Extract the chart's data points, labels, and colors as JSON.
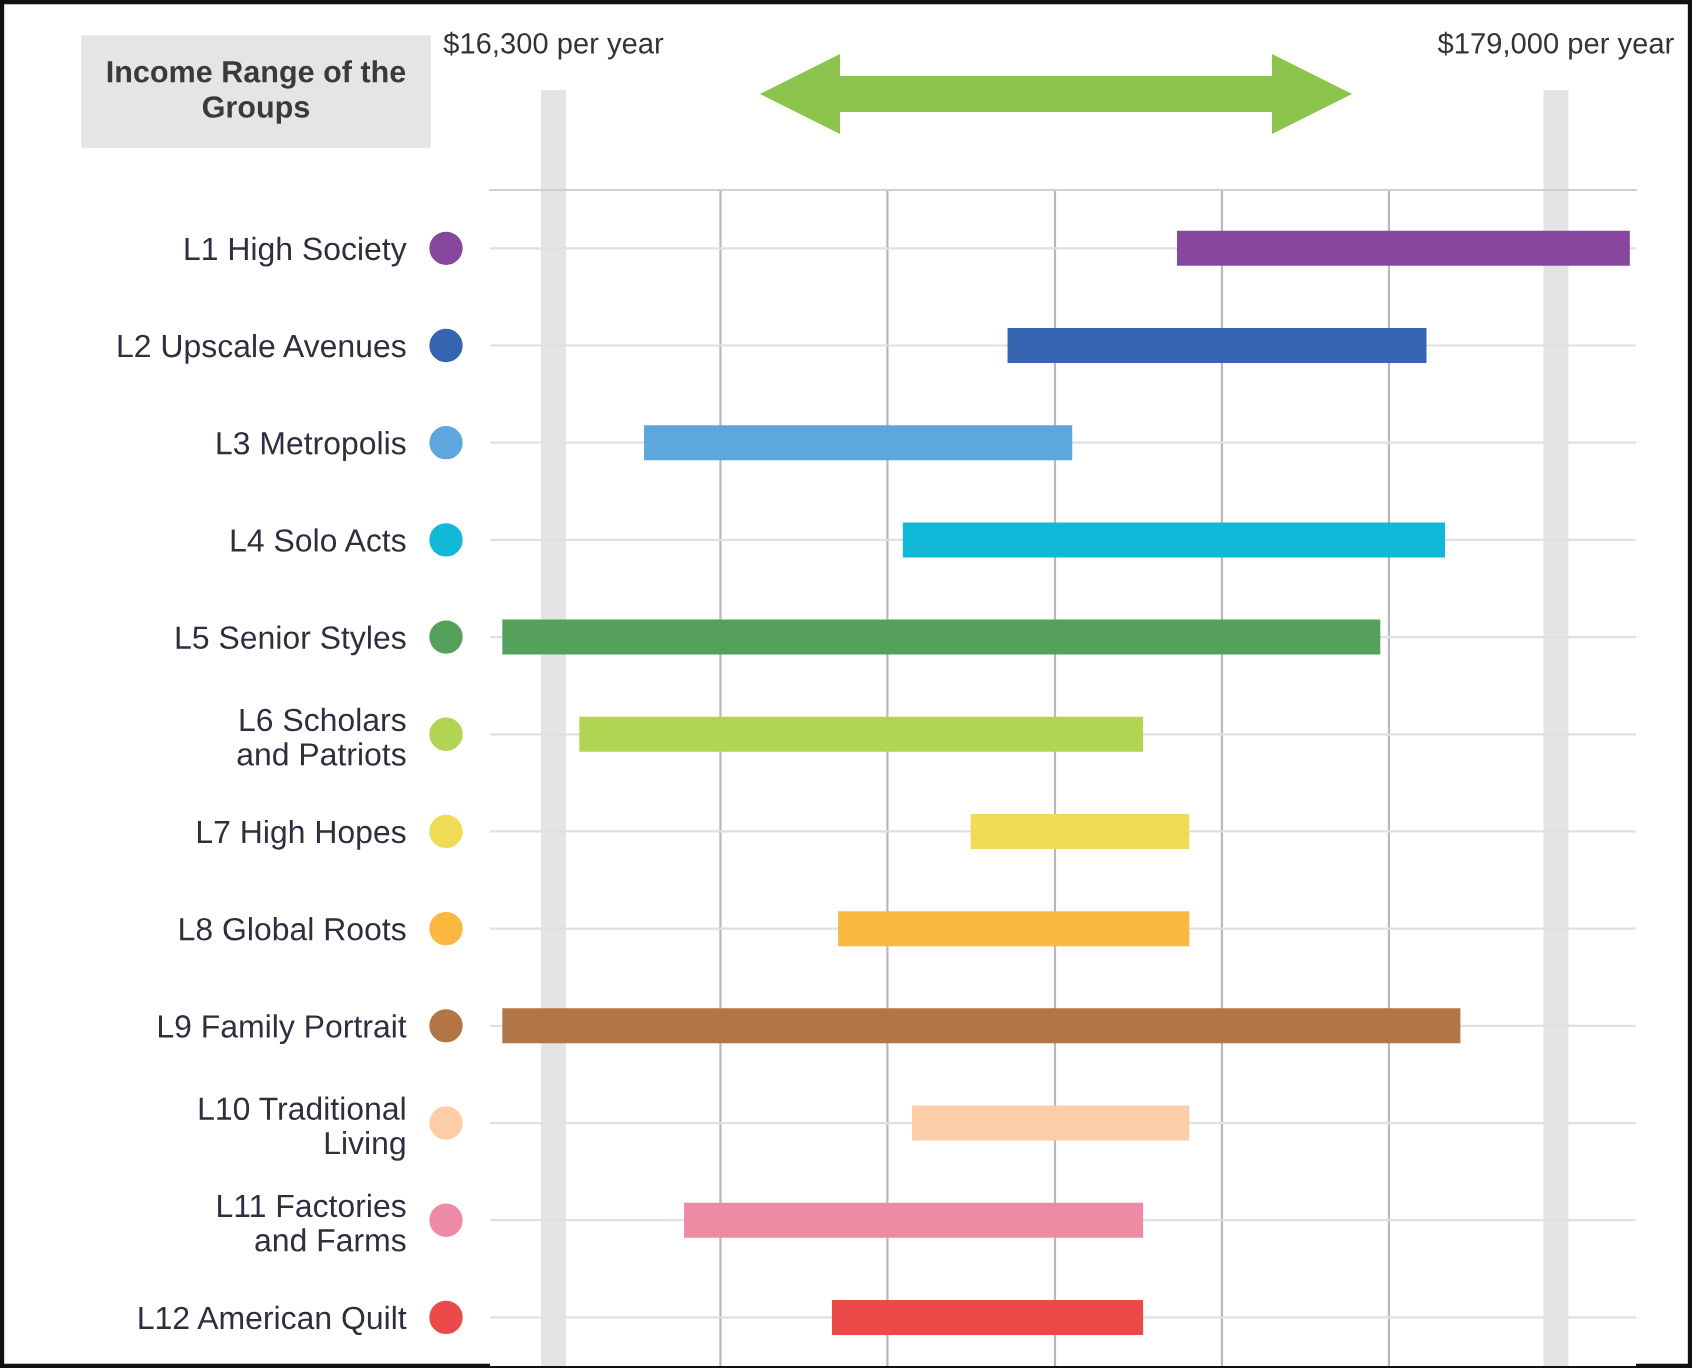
{
  "chart_data": {
    "type": "bar",
    "orientation": "horizontal",
    "title": "Income Range of the\nGroups",
    "categories": [
      "L1 High Society",
      "L2 Upscale Avenues",
      "L3 Metropolis",
      "L4 Solo Acts",
      "L5 Senior Styles",
      "L6 Scholars\nand Patriots",
      "L7 High Hopes",
      "L8 Global Roots",
      "L9 Family Portrait",
      "L10 Traditional\nLiving",
      "L11 Factories\nand Farms",
      "L12 American Quilt"
    ],
    "base": [
      117500,
      90000,
      31000,
      73000,
      8000,
      20500,
      84000,
      62500,
      8000,
      74500,
      37500,
      61500
    ],
    "values": [
      73500,
      68000,
      69500,
      88000,
      142500,
      91500,
      35500,
      57000,
      155500,
      45000,
      74500,
      50500
    ],
    "colors": [
      "#87479c",
      "#3565b0",
      "#5ea7dc",
      "#12b8d8",
      "#55a05a",
      "#b1d453",
      "#f1db55",
      "#fbb840",
      "#b27545",
      "#fdcda8",
      "#ef8aa5",
      "#ec4a48"
    ],
    "xlim": [
      6000,
      192000
    ],
    "xticks": [
      {
        "value": 16300,
        "label": "$16,300 per year"
      },
      {
        "value": 43400,
        "label": null
      },
      {
        "value": 70500,
        "label": null
      },
      {
        "value": 97700,
        "label": null
      },
      {
        "value": 124800,
        "label": null
      },
      {
        "value": 151900,
        "label": null
      },
      {
        "value": 179000,
        "label": "$179,000 per year"
      }
    ],
    "grid": true
  }
}
